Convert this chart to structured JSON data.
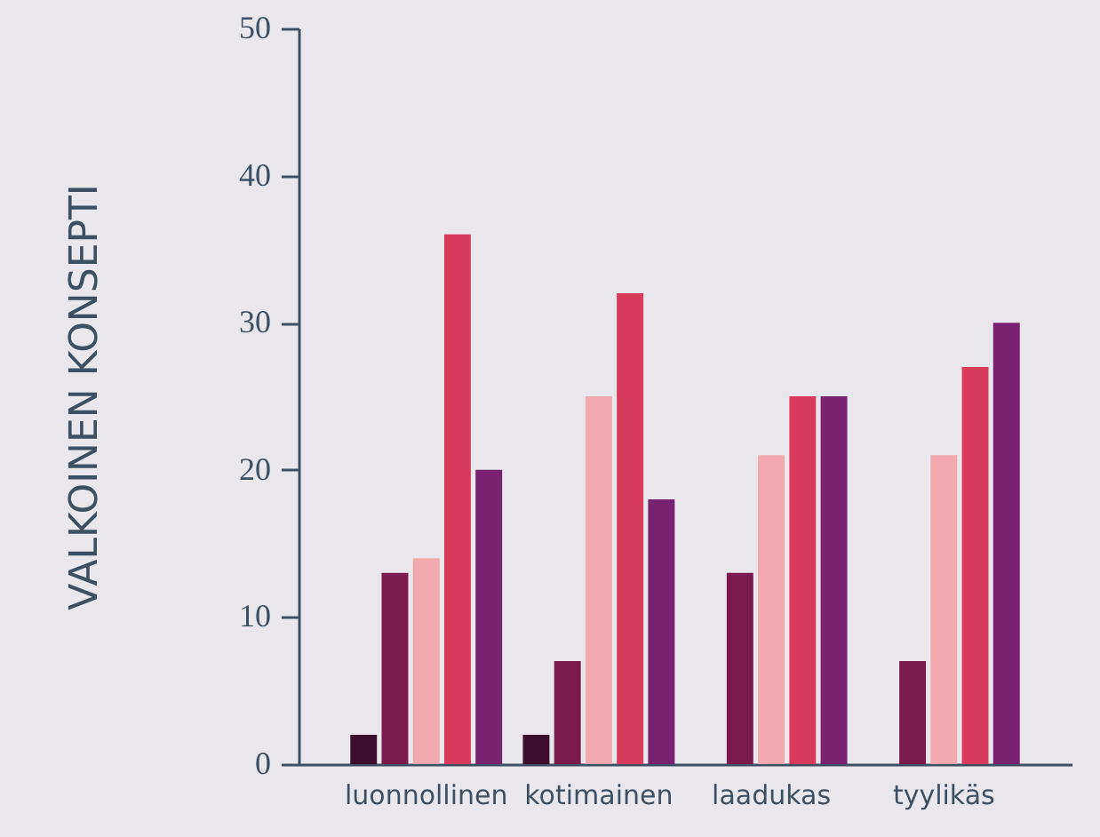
{
  "chart_data": {
    "type": "bar",
    "ylabel": "VALKOINEN KONSEPTI",
    "categories": [
      "luonnollinen",
      "kotimainen",
      "laadukas",
      "tyylikäs"
    ],
    "series": [
      {
        "color": "#3e0f2c",
        "values": [
          2,
          2,
          null,
          null
        ]
      },
      {
        "color": "#7b1a4c",
        "values": [
          13,
          7,
          13,
          7
        ]
      },
      {
        "color": "#f2a9ae",
        "values": [
          14,
          25,
          21,
          21
        ]
      },
      {
        "color": "#d83a5c",
        "values": [
          36,
          32,
          25,
          27
        ]
      },
      {
        "color": "#7a2272",
        "values": [
          20,
          18,
          25,
          30
        ]
      }
    ],
    "ylim": [
      0,
      50
    ],
    "yticks": [
      0,
      10,
      20,
      30,
      40,
      50
    ],
    "grid": false
  }
}
